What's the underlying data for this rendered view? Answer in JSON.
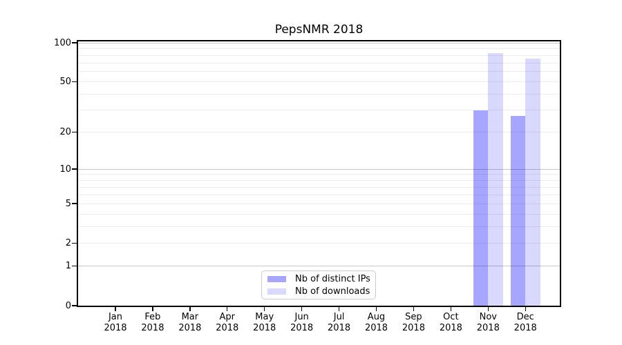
{
  "chart_data": {
    "type": "bar",
    "title": "PepsNMR 2018",
    "categories": [
      "Jan",
      "Feb",
      "Mar",
      "Apr",
      "May",
      "Jun",
      "Jul",
      "Aug",
      "Sep",
      "Oct",
      "Nov",
      "Dec"
    ],
    "year_label": "2018",
    "series": [
      {
        "name": "Nb of distinct IPs",
        "color": "#0000ff",
        "alpha": 0.35,
        "values": [
          0,
          0,
          0,
          0,
          0,
          0,
          0,
          0,
          0,
          0,
          30,
          27
        ]
      },
      {
        "name": "Nb of downloads",
        "color": "#0000ff",
        "alpha": 0.15,
        "values": [
          0,
          0,
          0,
          0,
          0,
          0,
          0,
          0,
          0,
          0,
          83,
          75
        ]
      }
    ],
    "yticks": [
      0,
      1,
      2,
      5,
      10,
      20,
      50,
      100
    ],
    "yscale": "log1p",
    "ylim": [
      0,
      103
    ],
    "xlabel": "",
    "ylabel": "",
    "grid": {
      "minor_values": [
        2,
        3,
        4,
        5,
        6,
        7,
        8,
        9,
        20,
        30,
        40,
        50,
        60,
        70,
        80,
        90
      ],
      "major_values": [
        1,
        10,
        100
      ],
      "minor_color": "#ececec",
      "major_color": "#c4c4c4"
    },
    "legend_position": "bottom-center",
    "background_color": "#ffffff",
    "spine_color": "#000000"
  }
}
